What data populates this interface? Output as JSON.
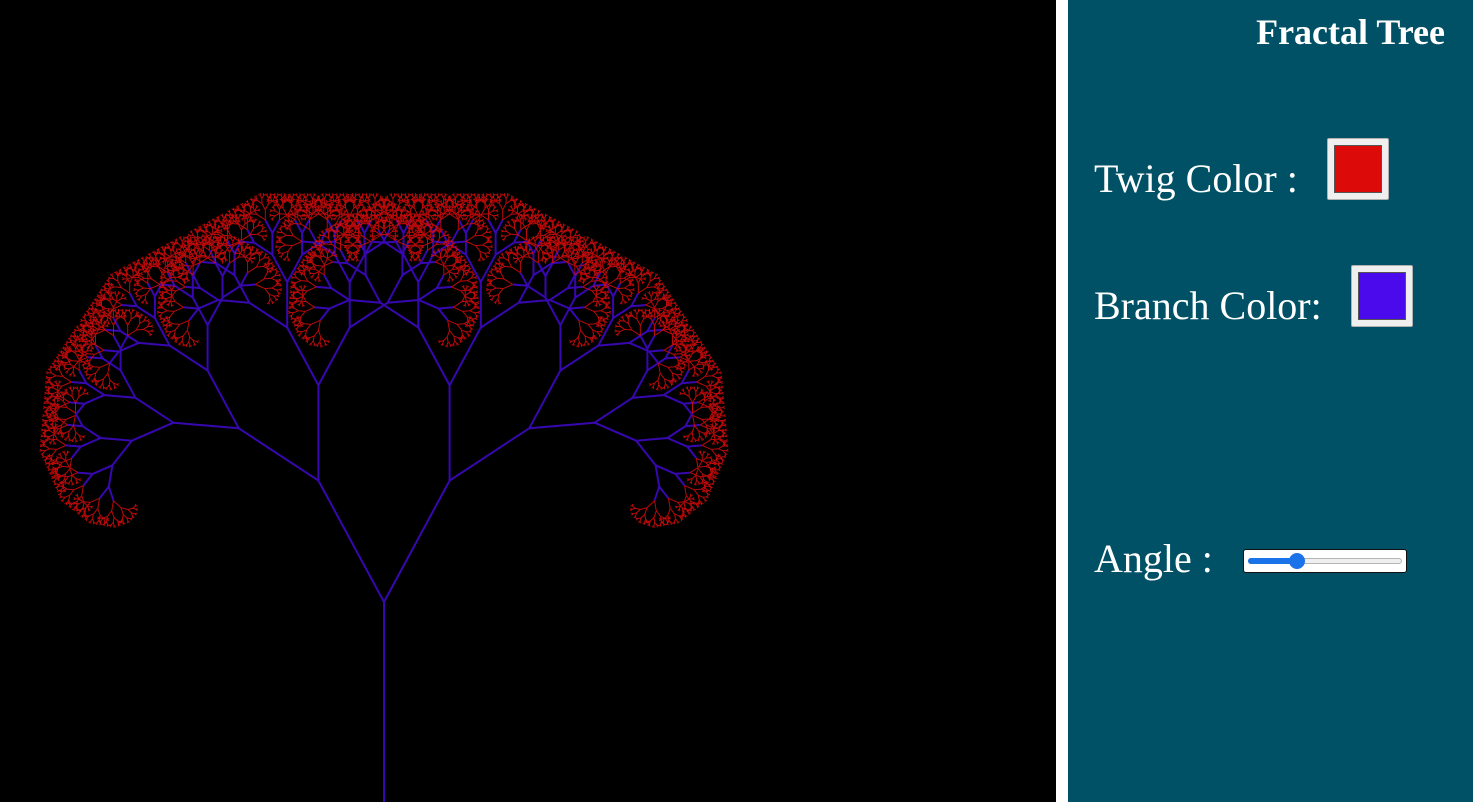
{
  "panel": {
    "title": "Fractal Tree",
    "twig": {
      "label": "Twig Color :",
      "color": "#dd0a0a"
    },
    "branch": {
      "label": "Branch Color:",
      "color": "#4a0aeb"
    },
    "angle": {
      "label": "Angle :",
      "fraction": 0.3
    }
  },
  "canvas": {
    "background": "#000000"
  },
  "icons": {
    "slider_thumb": "circle-thumb-icon"
  }
}
